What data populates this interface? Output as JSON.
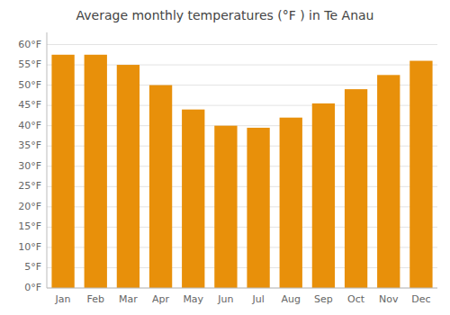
{
  "chart_data": {
    "type": "bar",
    "title": "Average monthly temperatures (°F ) in Te Anau",
    "categories": [
      "Jan",
      "Feb",
      "Mar",
      "Apr",
      "May",
      "Jun",
      "Jul",
      "Aug",
      "Sep",
      "Oct",
      "Nov",
      "Dec"
    ],
    "values": [
      57.5,
      57.5,
      55.0,
      50.0,
      44.0,
      40.0,
      39.5,
      42.0,
      45.5,
      49.0,
      52.5,
      56.0
    ],
    "color": "#E8900A",
    "ylim": [
      0,
      63
    ],
    "yticks": [
      {
        "value": 0,
        "label": "0°F"
      },
      {
        "value": 5,
        "label": "5°F"
      },
      {
        "value": 10,
        "label": "10°F"
      },
      {
        "value": 15,
        "label": "15°F"
      },
      {
        "value": 20,
        "label": "20°F"
      },
      {
        "value": 25,
        "label": "25°F"
      },
      {
        "value": 30,
        "label": "30°F"
      },
      {
        "value": 35,
        "label": "35°F"
      },
      {
        "value": 40,
        "label": "40°F"
      },
      {
        "value": 45,
        "label": "45°F"
      },
      {
        "value": 50,
        "label": "50°F"
      },
      {
        "value": 55,
        "label": "55°F"
      },
      {
        "value": 60,
        "label": "60°F"
      }
    ],
    "grid": true
  }
}
